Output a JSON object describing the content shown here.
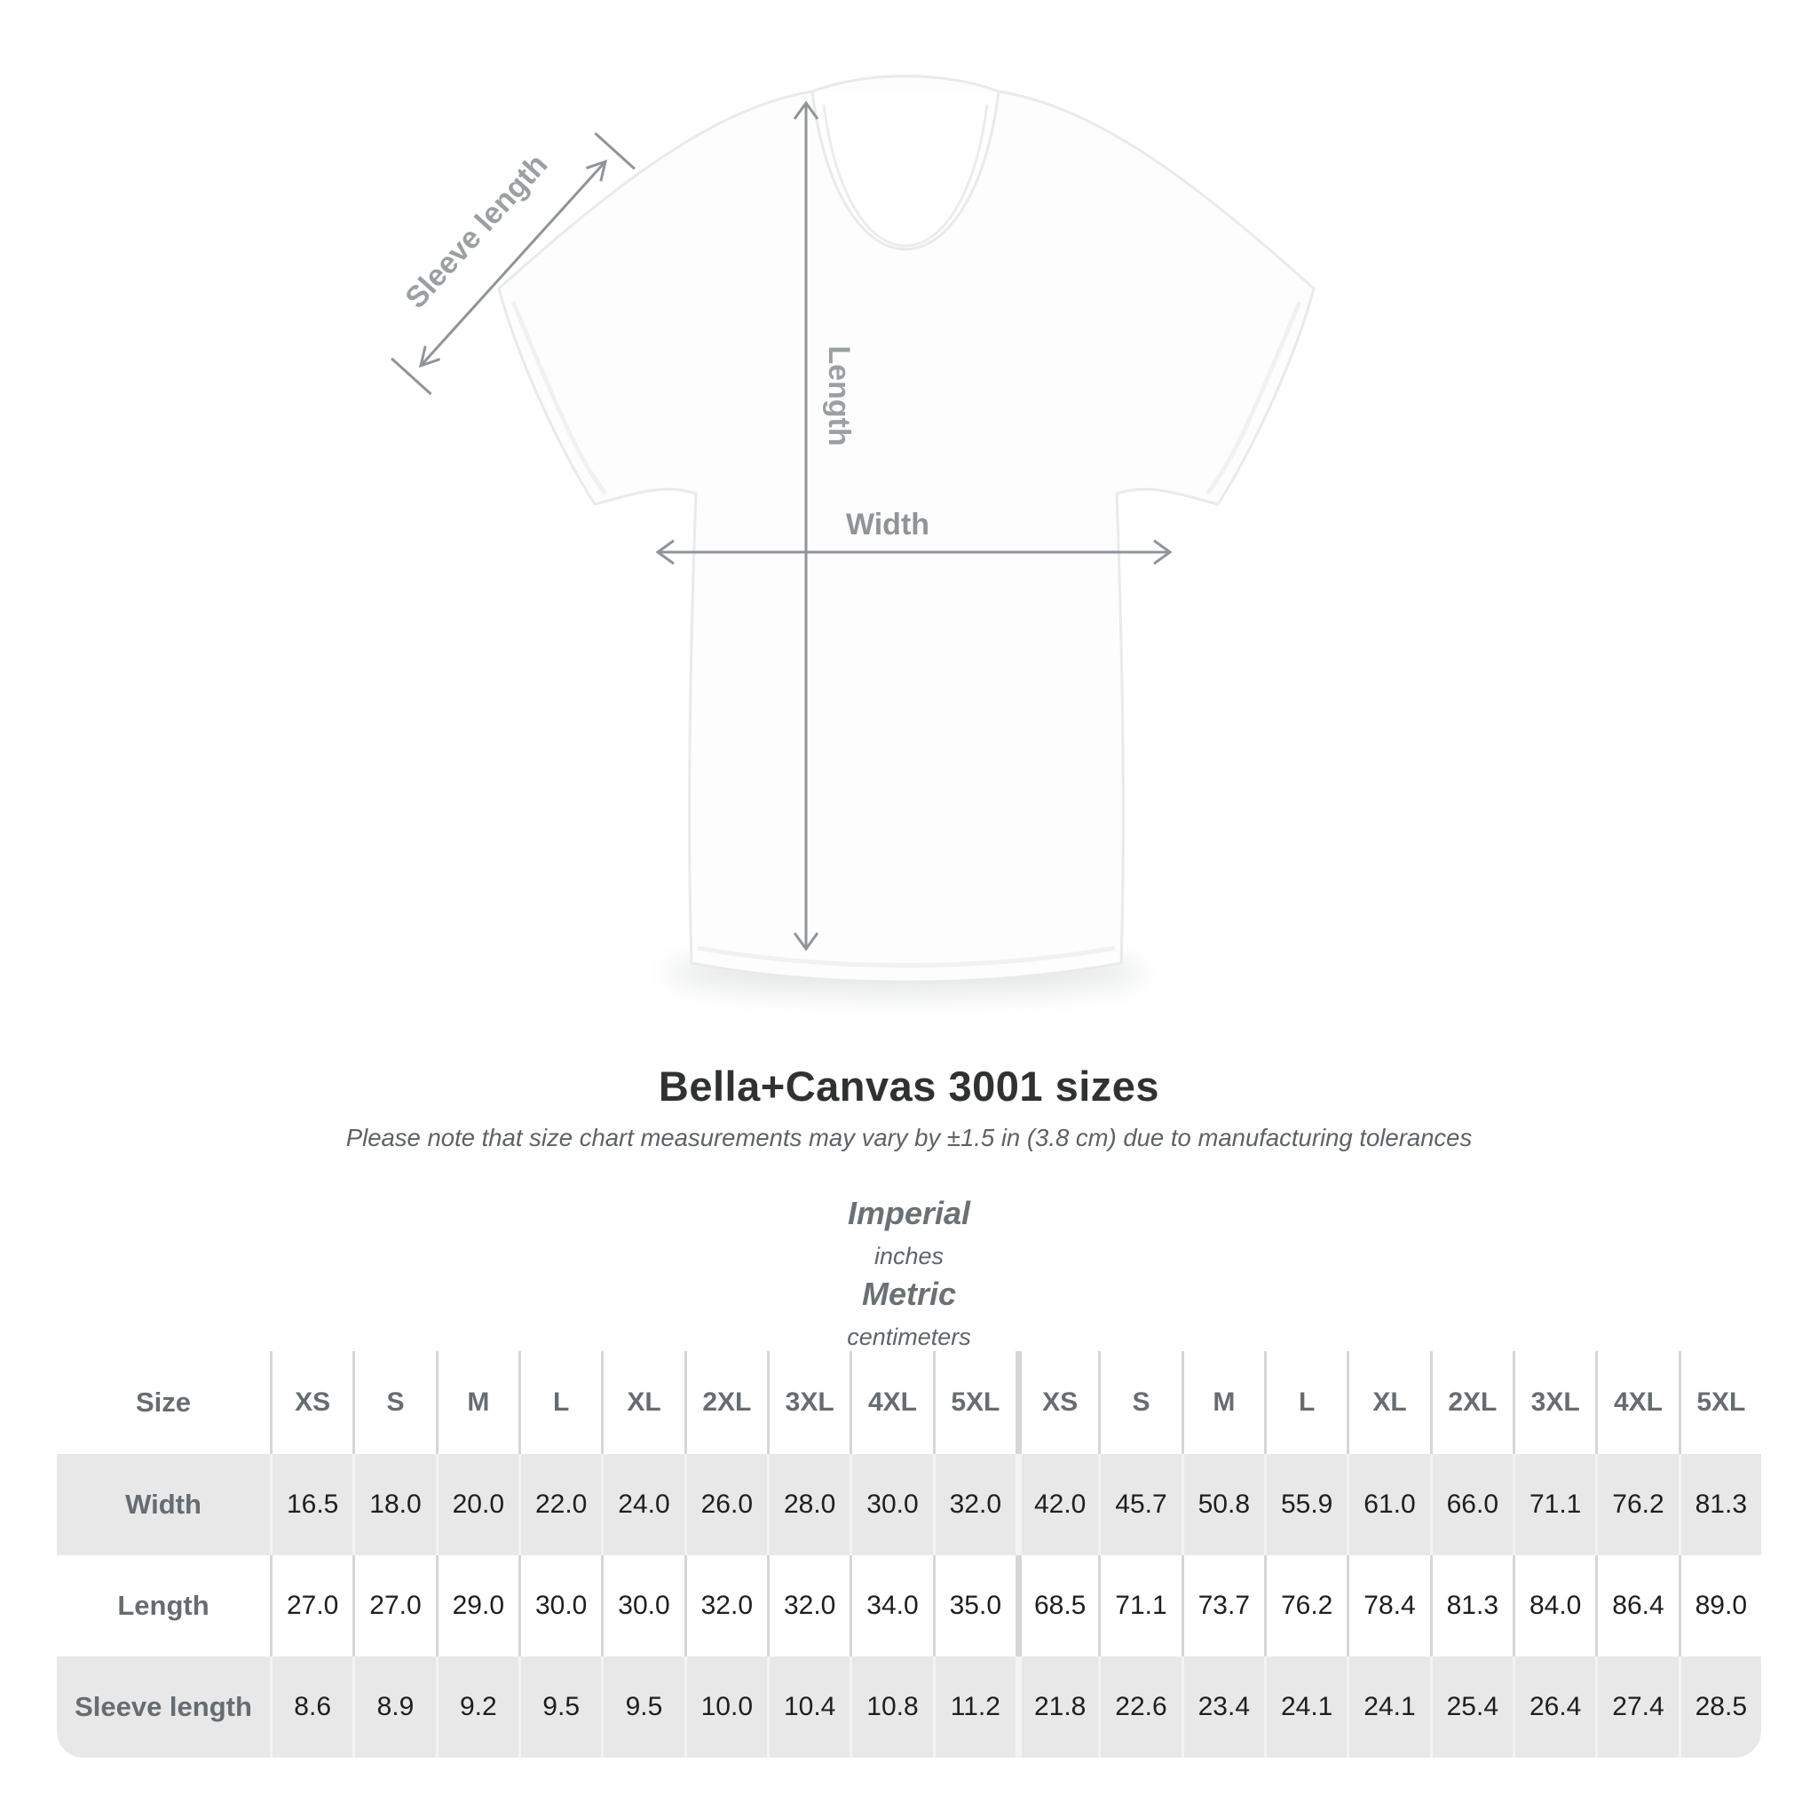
{
  "header": {
    "title": "Bella+Canvas 3001 sizes",
    "subtitle": "Please note that size chart measurements may vary by ±1.5 in (3.8 cm) due to manufacturing tolerances"
  },
  "diagram": {
    "sleeve_label": "Sleeve length",
    "length_label": "Length",
    "width_label": "Width"
  },
  "colors": {
    "arrow_gray": "#939899",
    "table_bg": "#e8e8e9",
    "label_gray": "#666c70",
    "value_black": "#1e1e1e"
  },
  "chart_data": {
    "type": "table",
    "title": "Bella+Canvas 3001 sizes",
    "subtitle": "Please note that size chart measurements may vary by ±1.5 in (3.8 cm) due to manufacturing tolerances",
    "size_label": "Size",
    "sizes": [
      "XS",
      "S",
      "M",
      "L",
      "XL",
      "2XL",
      "3XL",
      "4XL",
      "5XL"
    ],
    "groups": [
      {
        "name": "Imperial",
        "unit": "inches"
      },
      {
        "name": "Metric",
        "unit": "centimeters"
      }
    ],
    "rows": [
      {
        "label": "Width",
        "imperial": [
          "16.5",
          "18.0",
          "20.0",
          "22.0",
          "24.0",
          "26.0",
          "28.0",
          "30.0",
          "32.0"
        ],
        "metric": [
          "42.0",
          "45.7",
          "50.8",
          "55.9",
          "61.0",
          "66.0",
          "71.1",
          "76.2",
          "81.3"
        ]
      },
      {
        "label": "Length",
        "imperial": [
          "27.0",
          "27.0",
          "29.0",
          "30.0",
          "30.0",
          "32.0",
          "32.0",
          "34.0",
          "35.0"
        ],
        "metric": [
          "68.5",
          "71.1",
          "73.7",
          "76.2",
          "78.4",
          "81.3",
          "84.0",
          "86.4",
          "89.0"
        ]
      },
      {
        "label": "Sleeve length",
        "imperial": [
          "8.6",
          "8.9",
          "9.2",
          "9.5",
          "9.5",
          "10.0",
          "10.4",
          "10.8",
          "11.2"
        ],
        "metric": [
          "21.8",
          "22.6",
          "23.4",
          "24.1",
          "24.1",
          "25.4",
          "26.4",
          "27.4",
          "28.5"
        ]
      }
    ]
  }
}
